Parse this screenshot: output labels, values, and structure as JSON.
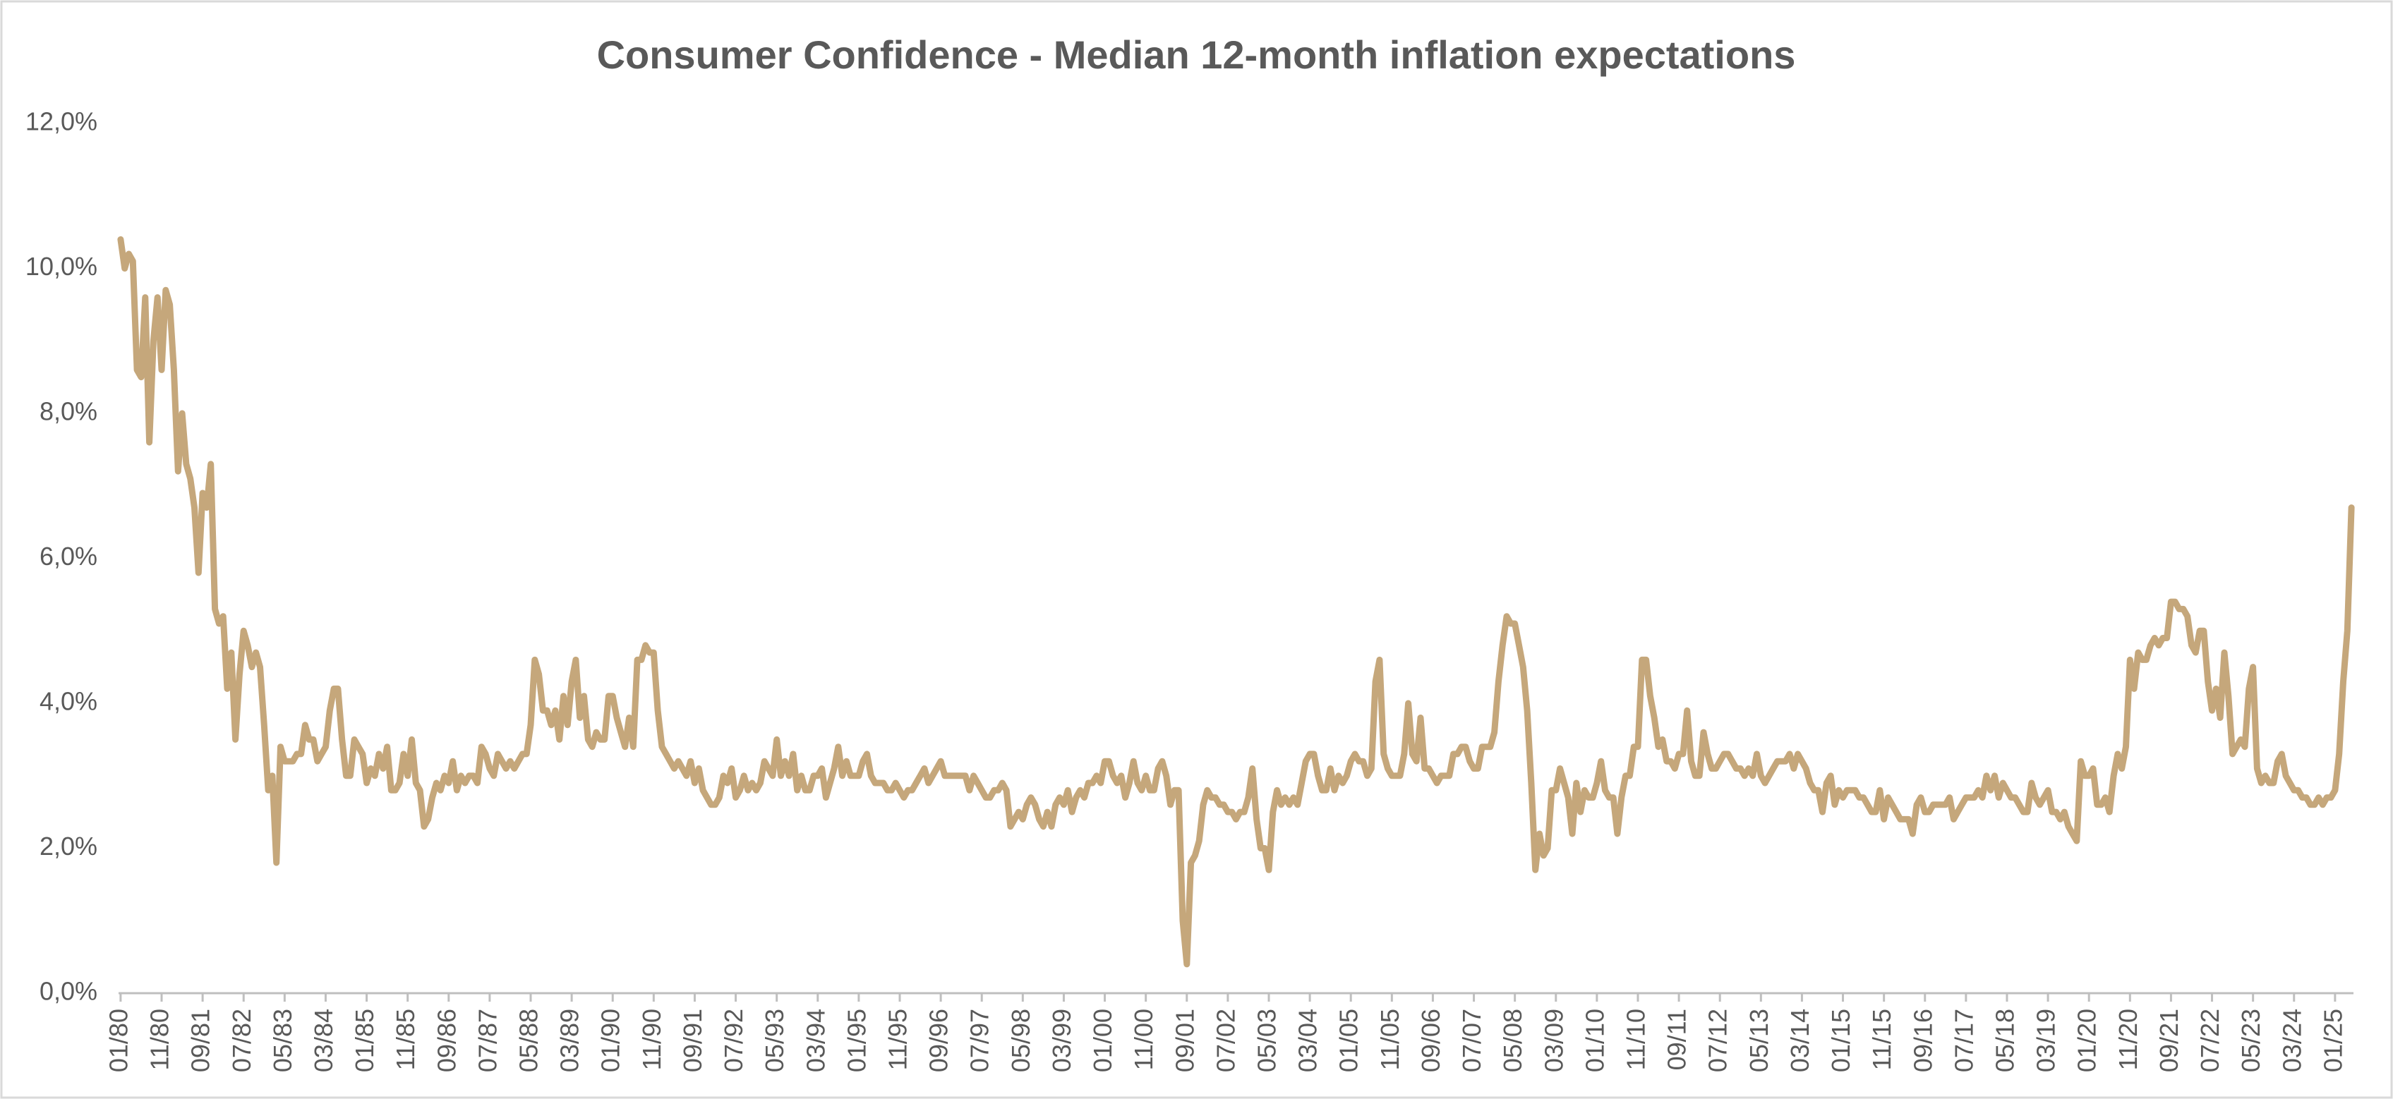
{
  "chart_data": {
    "type": "line",
    "title": "Consumer Confidence - Median 12-month inflation expectations",
    "categories": [
      "01/80",
      null,
      null,
      null,
      null,
      null,
      null,
      null,
      null,
      null,
      "11/80",
      null,
      null,
      null,
      null,
      null,
      null,
      null,
      null,
      null,
      "09/81",
      null,
      null,
      null,
      null,
      null,
      null,
      null,
      null,
      null,
      "07/82",
      null,
      null,
      null,
      null,
      null,
      null,
      null,
      null,
      null,
      "05/83",
      null,
      null,
      null,
      null,
      null,
      null,
      null,
      null,
      null,
      "03/84",
      null,
      null,
      null,
      null,
      null,
      null,
      null,
      null,
      null,
      "01/85",
      null,
      null,
      null,
      null,
      null,
      null,
      null,
      null,
      null,
      "11/85",
      null,
      null,
      null,
      null,
      null,
      null,
      null,
      null,
      null,
      "09/86",
      null,
      null,
      null,
      null,
      null,
      null,
      null,
      null,
      null,
      "07/87",
      null,
      null,
      null,
      null,
      null,
      null,
      null,
      null,
      null,
      "05/88",
      null,
      null,
      null,
      null,
      null,
      null,
      null,
      null,
      null,
      "03/89",
      null,
      null,
      null,
      null,
      null,
      null,
      null,
      null,
      null,
      "01/90",
      null,
      null,
      null,
      null,
      null,
      null,
      null,
      null,
      null,
      "11/90",
      null,
      null,
      null,
      null,
      null,
      null,
      null,
      null,
      null,
      "09/91",
      null,
      null,
      null,
      null,
      null,
      null,
      null,
      null,
      null,
      "07/92",
      null,
      null,
      null,
      null,
      null,
      null,
      null,
      null,
      null,
      "05/93",
      null,
      null,
      null,
      null,
      null,
      null,
      null,
      null,
      null,
      "03/94",
      null,
      null,
      null,
      null,
      null,
      null,
      null,
      null,
      null,
      "01/95",
      null,
      null,
      null,
      null,
      null,
      null,
      null,
      null,
      null,
      "11/95",
      null,
      null,
      null,
      null,
      null,
      null,
      null,
      null,
      null,
      "09/96",
      null,
      null,
      null,
      null,
      null,
      null,
      null,
      null,
      null,
      "07/97",
      null,
      null,
      null,
      null,
      null,
      null,
      null,
      null,
      null,
      "05/98",
      null,
      null,
      null,
      null,
      null,
      null,
      null,
      null,
      null,
      "03/99",
      null,
      null,
      null,
      null,
      null,
      null,
      null,
      null,
      null,
      "01/00",
      null,
      null,
      null,
      null,
      null,
      null,
      null,
      null,
      null,
      "11/00",
      null,
      null,
      null,
      null,
      null,
      null,
      null,
      null,
      null,
      "09/01",
      null,
      null,
      null,
      null,
      null,
      null,
      null,
      null,
      null,
      "07/02",
      null,
      null,
      null,
      null,
      null,
      null,
      null,
      null,
      null,
      "05/03",
      null,
      null,
      null,
      null,
      null,
      null,
      null,
      null,
      null,
      "03/04",
      null,
      null,
      null,
      null,
      null,
      null,
      null,
      null,
      null,
      "01/05",
      null,
      null,
      null,
      null,
      null,
      null,
      null,
      null,
      null,
      "11/05",
      null,
      null,
      null,
      null,
      null,
      null,
      null,
      null,
      null,
      "09/06",
      null,
      null,
      null,
      null,
      null,
      null,
      null,
      null,
      null,
      "07/07",
      null,
      null,
      null,
      null,
      null,
      null,
      null,
      null,
      null,
      "05/08",
      null,
      null,
      null,
      null,
      null,
      null,
      null,
      null,
      null,
      "03/09",
      null,
      null,
      null,
      null,
      null,
      null,
      null,
      null,
      null,
      "01/10",
      null,
      null,
      null,
      null,
      null,
      null,
      null,
      null,
      null,
      "11/10",
      null,
      null,
      null,
      null,
      null,
      null,
      null,
      null,
      null,
      "09/11",
      null,
      null,
      null,
      null,
      null,
      null,
      null,
      null,
      null,
      "07/12",
      null,
      null,
      null,
      null,
      null,
      null,
      null,
      null,
      null,
      "05/13",
      null,
      null,
      null,
      null,
      null,
      null,
      null,
      null,
      null,
      "03/14",
      null,
      null,
      null,
      null,
      null,
      null,
      null,
      null,
      null,
      "01/15",
      null,
      null,
      null,
      null,
      null,
      null,
      null,
      null,
      null,
      "11/15",
      null,
      null,
      null,
      null,
      null,
      null,
      null,
      null,
      null,
      "09/16",
      null,
      null,
      null,
      null,
      null,
      null,
      null,
      null,
      null,
      "07/17",
      null,
      null,
      null,
      null,
      null,
      null,
      null,
      null,
      null,
      "05/18",
      null,
      null,
      null,
      null,
      null,
      null,
      null,
      null,
      null,
      "03/19",
      null,
      null,
      null,
      null,
      null,
      null,
      null,
      null,
      null,
      "01/20",
      null,
      null,
      null,
      null,
      null,
      null,
      null,
      null,
      null,
      "11/20",
      null,
      null,
      null,
      null,
      null,
      null,
      null,
      null,
      null,
      "09/21",
      null,
      null,
      null,
      null,
      null,
      null,
      null,
      null,
      null,
      "07/22",
      null,
      null,
      null,
      null,
      null,
      null,
      null,
      null,
      null,
      "05/23",
      null,
      null,
      null,
      null,
      null,
      null,
      null,
      null,
      null,
      "03/24",
      null,
      null,
      null,
      null,
      null,
      null,
      null,
      null,
      null,
      "01/25",
      null,
      null,
      null,
      null
    ],
    "values": [
      10.4,
      10.0,
      10.2,
      10.1,
      8.6,
      8.5,
      9.6,
      7.6,
      9.0,
      9.6,
      8.6,
      9.7,
      9.5,
      8.6,
      7.2,
      8.0,
      7.3,
      7.1,
      6.7,
      5.8,
      6.9,
      6.7,
      7.3,
      5.3,
      5.1,
      5.2,
      4.2,
      4.7,
      3.5,
      4.4,
      5.0,
      4.8,
      4.5,
      4.7,
      4.5,
      3.7,
      2.8,
      3.0,
      1.8,
      3.4,
      3.2,
      3.2,
      3.2,
      3.3,
      3.3,
      3.7,
      3.5,
      3.5,
      3.2,
      3.3,
      3.4,
      3.9,
      4.2,
      4.2,
      3.5,
      3.0,
      3.0,
      3.5,
      3.4,
      3.3,
      2.9,
      3.1,
      3.0,
      3.3,
      3.1,
      3.4,
      2.8,
      2.8,
      2.9,
      3.3,
      3.0,
      3.5,
      2.9,
      2.8,
      2.3,
      2.4,
      2.7,
      2.9,
      2.8,
      3.0,
      2.9,
      3.2,
      2.8,
      3.0,
      2.9,
      3.0,
      3.0,
      2.9,
      3.4,
      3.3,
      3.1,
      3.0,
      3.3,
      3.2,
      3.1,
      3.2,
      3.1,
      3.2,
      3.3,
      3.3,
      3.7,
      4.6,
      4.4,
      3.9,
      3.9,
      3.7,
      3.9,
      3.5,
      4.1,
      3.7,
      4.3,
      4.6,
      3.8,
      4.1,
      3.5,
      3.4,
      3.6,
      3.5,
      3.5,
      4.1,
      4.1,
      3.8,
      3.6,
      3.4,
      3.8,
      3.4,
      4.6,
      4.6,
      4.8,
      4.7,
      4.7,
      3.9,
      3.4,
      3.3,
      3.2,
      3.1,
      3.2,
      3.1,
      3.0,
      3.2,
      2.9,
      3.1,
      2.8,
      2.7,
      2.6,
      2.6,
      2.7,
      3.0,
      2.9,
      3.1,
      2.7,
      2.8,
      3.0,
      2.8,
      2.9,
      2.8,
      2.9,
      3.2,
      3.1,
      3.0,
      3.5,
      3.0,
      3.2,
      3.0,
      3.3,
      2.8,
      3.0,
      2.8,
      2.8,
      3.0,
      3.0,
      3.1,
      2.7,
      2.9,
      3.1,
      3.4,
      3.0,
      3.2,
      3.0,
      3.0,
      3.0,
      3.2,
      3.3,
      3.0,
      2.9,
      2.9,
      2.9,
      2.8,
      2.8,
      2.9,
      2.8,
      2.7,
      2.8,
      2.8,
      2.9,
      3.0,
      3.1,
      2.9,
      3.0,
      3.1,
      3.2,
      3.0,
      3.0,
      3.0,
      3.0,
      3.0,
      3.0,
      2.8,
      3.0,
      2.9,
      2.8,
      2.7,
      2.7,
      2.8,
      2.8,
      2.9,
      2.8,
      2.3,
      2.4,
      2.5,
      2.4,
      2.6,
      2.7,
      2.6,
      2.4,
      2.3,
      2.5,
      2.3,
      2.6,
      2.7,
      2.6,
      2.8,
      2.5,
      2.7,
      2.8,
      2.7,
      2.9,
      2.9,
      3.0,
      2.9,
      3.2,
      3.2,
      3.0,
      2.9,
      3.0,
      2.7,
      2.9,
      3.2,
      2.9,
      2.8,
      3.0,
      2.8,
      2.8,
      3.1,
      3.2,
      3.0,
      2.6,
      2.8,
      2.8,
      1.0,
      0.4,
      1.8,
      1.9,
      2.1,
      2.6,
      2.8,
      2.7,
      2.7,
      2.6,
      2.6,
      2.5,
      2.5,
      2.4,
      2.5,
      2.5,
      2.7,
      3.1,
      2.4,
      2.0,
      2.0,
      1.7,
      2.5,
      2.8,
      2.6,
      2.7,
      2.6,
      2.7,
      2.6,
      2.9,
      3.2,
      3.3,
      3.3,
      3.0,
      2.8,
      2.8,
      3.1,
      2.8,
      3.0,
      2.9,
      3.0,
      3.2,
      3.3,
      3.2,
      3.2,
      3.0,
      3.1,
      4.3,
      4.6,
      3.3,
      3.1,
      3.0,
      3.0,
      3.0,
      3.3,
      4.0,
      3.3,
      3.2,
      3.8,
      3.1,
      3.1,
      3.0,
      2.9,
      3.0,
      3.0,
      3.0,
      3.3,
      3.3,
      3.4,
      3.4,
      3.2,
      3.1,
      3.1,
      3.4,
      3.4,
      3.4,
      3.6,
      4.3,
      4.8,
      5.2,
      5.1,
      5.1,
      4.8,
      4.5,
      3.9,
      2.9,
      1.7,
      2.2,
      1.9,
      2.0,
      2.8,
      2.8,
      3.1,
      2.9,
      2.7,
      2.2,
      2.9,
      2.5,
      2.8,
      2.7,
      2.7,
      2.9,
      3.2,
      2.8,
      2.7,
      2.7,
      2.2,
      2.7,
      3.0,
      3.0,
      3.4,
      3.4,
      4.6,
      4.6,
      4.1,
      3.8,
      3.4,
      3.5,
      3.2,
      3.2,
      3.1,
      3.3,
      3.3,
      3.9,
      3.2,
      3.0,
      3.0,
      3.6,
      3.3,
      3.1,
      3.1,
      3.2,
      3.3,
      3.3,
      3.2,
      3.1,
      3.1,
      3.0,
      3.1,
      3.0,
      3.3,
      3.0,
      2.9,
      3.0,
      3.1,
      3.2,
      3.2,
      3.2,
      3.3,
      3.1,
      3.3,
      3.2,
      3.1,
      2.9,
      2.8,
      2.8,
      2.5,
      2.9,
      3.0,
      2.6,
      2.8,
      2.7,
      2.8,
      2.8,
      2.8,
      2.7,
      2.7,
      2.6,
      2.5,
      2.5,
      2.8,
      2.4,
      2.7,
      2.6,
      2.5,
      2.4,
      2.4,
      2.4,
      2.2,
      2.6,
      2.7,
      2.5,
      2.5,
      2.6,
      2.6,
      2.6,
      2.6,
      2.7,
      2.4,
      2.5,
      2.6,
      2.7,
      2.7,
      2.7,
      2.8,
      2.7,
      3.0,
      2.8,
      3.0,
      2.7,
      2.9,
      2.8,
      2.7,
      2.7,
      2.6,
      2.5,
      2.5,
      2.9,
      2.7,
      2.6,
      2.7,
      2.8,
      2.5,
      2.5,
      2.4,
      2.5,
      2.3,
      2.2,
      2.1,
      3.2,
      3.0,
      3.0,
      3.1,
      2.6,
      2.6,
      2.7,
      2.5,
      3.0,
      3.3,
      3.1,
      3.4,
      4.6,
      4.2,
      4.7,
      4.6,
      4.6,
      4.8,
      4.9,
      4.8,
      4.9,
      4.9,
      5.4,
      5.4,
      5.3,
      5.3,
      5.2,
      4.8,
      4.7,
      5.0,
      5.0,
      4.3,
      3.9,
      4.2,
      3.8,
      4.7,
      4.1,
      3.3,
      3.4,
      3.5,
      3.4,
      4.2,
      4.5,
      3.1,
      2.9,
      3.0,
      2.9,
      2.9,
      3.2,
      3.3,
      3.0,
      2.9,
      2.8,
      2.8,
      2.7,
      2.7,
      2.6,
      2.6,
      2.7,
      2.6,
      2.7,
      2.7,
      2.8,
      3.3,
      4.3,
      5.0,
      6.7
    ],
    "color": "#c5a77b",
    "ylim": [
      0,
      12
    ],
    "yticks": [
      {
        "value": 0,
        "label": "0,0%"
      },
      {
        "value": 2,
        "label": "2,0%"
      },
      {
        "value": 4,
        "label": "4,0%"
      },
      {
        "value": 6,
        "label": "6,0%"
      },
      {
        "value": 8,
        "label": "8,0%"
      },
      {
        "value": 10,
        "label": "10,0%"
      },
      {
        "value": 12,
        "label": "12,0%"
      }
    ],
    "grid": false
  }
}
